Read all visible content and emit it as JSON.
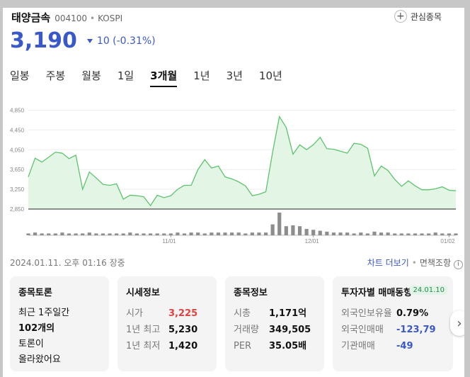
{
  "stock": {
    "name": "태양금속",
    "code": "004100",
    "market": "KOSPI",
    "price": "3,190",
    "change": "10 (-0.31%)",
    "favorite_label": "관심종목"
  },
  "tabs": [
    "일봉",
    "주봉",
    "월봉",
    "1일",
    "3개월",
    "1년",
    "3년",
    "10년"
  ],
  "active_tab": "3개월",
  "chart_data": {
    "type": "area",
    "ylim": [
      2850,
      4900
    ],
    "y_ticks": [
      "4,850",
      "4,450",
      "4,050",
      "3,650",
      "3,250",
      "2,850"
    ],
    "x_ticks": [
      "11/01",
      "12/01",
      "01/02"
    ],
    "values": [
      3500,
      3880,
      3800,
      3900,
      4000,
      3980,
      3870,
      3940,
      3250,
      3600,
      3480,
      3350,
      3330,
      3360,
      3050,
      3130,
      3120,
      3100,
      2920,
      3130,
      3080,
      3120,
      3250,
      3330,
      3330,
      3650,
      3850,
      3680,
      3720,
      3500,
      3460,
      3400,
      3320,
      3120,
      3150,
      3200,
      4000,
      4720,
      4500,
      3960,
      4150,
      4050,
      4150,
      4300,
      4070,
      4060,
      4020,
      3980,
      4180,
      4160,
      4080,
      3520,
      3720,
      3630,
      3450,
      3310,
      3420,
      3320,
      3240,
      3240,
      3260,
      3300,
      3230,
      3220
    ],
    "volumes": [
      2,
      3,
      2,
      2,
      2,
      3,
      2,
      2,
      2,
      3,
      2,
      2,
      2,
      2,
      2,
      3,
      2,
      2,
      2,
      2,
      2,
      2,
      3,
      2,
      3,
      3,
      2,
      3,
      3,
      3,
      3,
      3,
      2,
      3,
      3,
      3,
      12,
      25,
      10,
      11,
      10,
      7,
      6,
      5,
      4,
      3,
      3,
      3,
      2,
      3,
      2,
      4,
      3,
      3,
      2,
      2,
      2,
      2,
      2,
      2,
      3,
      2,
      2,
      2
    ],
    "colors": {
      "line": "#5ec36e",
      "fill": "#e3f6e5",
      "volume": "#8d8d8d"
    }
  },
  "timestamp": "2024.01.11. 오후 01:16 장중",
  "more": {
    "link": "차트 더보기",
    "condition": "면책조항"
  },
  "cards": {
    "forum": {
      "title": "종목토론",
      "lines": [
        "최근 1주일간",
        "102개의",
        "토론이",
        "올라왔어요"
      ]
    },
    "market": {
      "title": "시세정보",
      "rows": [
        {
          "k": "시가",
          "v": "3,225"
        },
        {
          "k": "1년 최고",
          "v": "5,230"
        },
        {
          "k": "1년 최저",
          "v": "1,420"
        }
      ]
    },
    "info": {
      "title": "종목정보",
      "rows": [
        {
          "k": "시총",
          "v": "1,171억"
        },
        {
          "k": "거래량",
          "v": "349,505"
        },
        {
          "k": "PER",
          "v": "35.05배"
        }
      ]
    },
    "investor": {
      "title": "투자자별 매매동향",
      "date": "24.01.10",
      "rows": [
        {
          "k": "외국인보유율",
          "v": "0.79%"
        },
        {
          "k": "외국인매매",
          "v": "-123,79"
        },
        {
          "k": "기관매매",
          "v": "-49"
        }
      ]
    }
  },
  "icons": {
    "favorite": "plus-icon",
    "info": "info-icon",
    "next": "chevron-right-icon",
    "change": "triangle-down-icon"
  }
}
